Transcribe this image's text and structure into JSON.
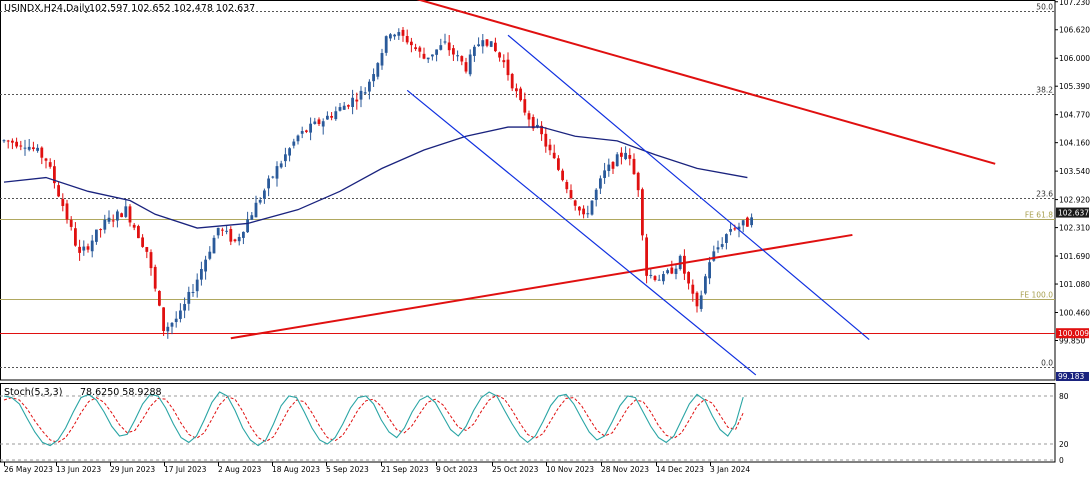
{
  "header": {
    "symbol_text": "USINDX,H24,Daily",
    "ohlc_text": "102.597 102.652 102.478 102.637"
  },
  "indicator": {
    "label_name": "Stoch(5,3,3)",
    "label_values": "78.6250 58.9288",
    "levels": [
      "80",
      "20",
      "0"
    ]
  },
  "price_axis": {
    "ticks": [
      "107.230",
      "106.620",
      "106.000",
      "105.390",
      "104.770",
      "104.160",
      "103.540",
      "102.920",
      "102.310",
      "101.690",
      "101.080",
      "100.460",
      "99.850"
    ]
  },
  "time_axis": {
    "labels": [
      "26 May 2023",
      "13 Jun 2023",
      "29 Jun 2023",
      "17 Jul 2023",
      "2 Aug 2023",
      "18 Aug 2023",
      "5 Sep 2023",
      "21 Sep 2023",
      "9 Oct 2023",
      "25 Oct 2023",
      "10 Nov 2023",
      "28 Nov 2023",
      "14 Dec 2023",
      "3 Jan 2024"
    ]
  },
  "markers": {
    "current_price": "102.637",
    "red_line_price": "100.009",
    "bottom_price": "99.183",
    "fib_labels": [
      {
        "text": "50.0",
        "price": 107.03,
        "color": "#333333"
      },
      {
        "text": "38.2",
        "price": 105.22,
        "color": "#333333"
      },
      {
        "text": "23.6",
        "price": 102.95,
        "color": "#333333"
      },
      {
        "text": "FE 61.8",
        "price": 102.5,
        "color": "#a8a050"
      },
      {
        "text": "FE 100.0",
        "price": 100.75,
        "color": "#a8a050"
      },
      {
        "text": "0.0",
        "price": 99.27,
        "color": "#333333"
      }
    ]
  },
  "colors": {
    "bull": "#2a5a9a",
    "bear": "#e01010",
    "ma": "#1a237e",
    "channel": "#1030e0",
    "trendline": "#e01010",
    "stoch_main": "#2aa5a5",
    "stoch_signal": "#e01010"
  },
  "chart_data": {
    "type": "candlestick",
    "timeframe": "Daily",
    "ylim": [
      99.55,
      107.35
    ],
    "dates": [
      "26 May 2023",
      "13 Jun 2023",
      "29 Jun 2023",
      "17 Jul 2023",
      "2 Aug 2023",
      "18 Aug 2023",
      "5 Sep 2023",
      "21 Sep 2023",
      "9 Oct 2023",
      "25 Oct 2023",
      "10 Nov 2023",
      "28 Nov 2023",
      "14 Dec 2023",
      "3 Jan 2024"
    ],
    "close_path": [
      [
        0,
        104.2
      ],
      [
        5,
        104.15
      ],
      [
        10,
        103.8
      ],
      [
        14,
        102.8
      ],
      [
        18,
        101.7
      ],
      [
        24,
        102.4
      ],
      [
        29,
        102.7
      ],
      [
        34,
        101.8
      ],
      [
        38,
        100.1
      ],
      [
        42,
        100.4
      ],
      [
        46,
        101.2
      ],
      [
        51,
        102.3
      ],
      [
        55,
        102.0
      ],
      [
        60,
        102.8
      ],
      [
        65,
        103.6
      ],
      [
        70,
        104.3
      ],
      [
        75,
        104.6
      ],
      [
        80,
        104.9
      ],
      [
        86,
        105.3
      ],
      [
        92,
        106.6
      ],
      [
        96,
        106.4
      ],
      [
        100,
        106.0
      ],
      [
        105,
        106.3
      ],
      [
        110,
        105.8
      ],
      [
        114,
        106.5
      ],
      [
        119,
        105.9
      ],
      [
        123,
        105.0
      ],
      [
        128,
        104.3
      ],
      [
        133,
        103.4
      ],
      [
        138,
        102.5
      ],
      [
        143,
        103.5
      ],
      [
        148,
        104.0
      ],
      [
        151,
        103.2
      ],
      [
        153,
        101.3
      ],
      [
        157,
        101.2
      ],
      [
        161,
        101.6
      ],
      [
        165,
        100.5
      ],
      [
        168,
        101.6
      ],
      [
        173,
        102.3
      ],
      [
        177,
        102.4
      ],
      [
        178,
        102.637
      ]
    ],
    "moving_average": [
      [
        0,
        103.3
      ],
      [
        10,
        103.4
      ],
      [
        20,
        103.1
      ],
      [
        30,
        102.9
      ],
      [
        36,
        102.6
      ],
      [
        46,
        102.3
      ],
      [
        58,
        102.4
      ],
      [
        70,
        102.7
      ],
      [
        80,
        103.1
      ],
      [
        90,
        103.6
      ],
      [
        100,
        104.0
      ],
      [
        110,
        104.3
      ],
      [
        120,
        104.5
      ],
      [
        128,
        104.5
      ],
      [
        136,
        104.3
      ],
      [
        146,
        104.2
      ],
      [
        155,
        103.9
      ],
      [
        165,
        103.6
      ],
      [
        177,
        103.4
      ]
    ],
    "red_upper_trendline": [
      [
        94,
        107.4
      ],
      [
        236,
        103.7
      ]
    ],
    "red_lower_trendline": [
      [
        54,
        99.9
      ],
      [
        202,
        102.15
      ]
    ],
    "blue_channel_upper": [
      [
        120,
        106.5
      ],
      [
        206,
        99.87
      ]
    ],
    "blue_channel_lower": [
      [
        96,
        105.3
      ],
      [
        179,
        99.1
      ]
    ],
    "stochastic_main": [
      80,
      78,
      70,
      52,
      35,
      22,
      18,
      25,
      40,
      60,
      78,
      82,
      75,
      60,
      42,
      30,
      32,
      50,
      70,
      82,
      80,
      65,
      45,
      28,
      22,
      30,
      50,
      72,
      85,
      80,
      62,
      40,
      25,
      18,
      25,
      45,
      68,
      80,
      78,
      60,
      40,
      25,
      20,
      28,
      45,
      65,
      78,
      80,
      70,
      50,
      35,
      28,
      40,
      60,
      75,
      80,
      72,
      55,
      38,
      30,
      42,
      62,
      78,
      85,
      80,
      62,
      45,
      30,
      22,
      30,
      48,
      68,
      80,
      82,
      70,
      52,
      35,
      25,
      30,
      48,
      68,
      80,
      78,
      60,
      42,
      28,
      22,
      30,
      50,
      70,
      82,
      75,
      55,
      38,
      30,
      45,
      78.625
    ],
    "stochastic_signal": [
      75,
      78,
      75,
      64,
      49,
      36,
      25,
      22,
      28,
      42,
      59,
      73,
      78,
      72,
      59,
      44,
      34,
      37,
      51,
      67,
      77,
      76,
      63,
      46,
      32,
      27,
      34,
      51,
      69,
      79,
      76,
      61,
      42,
      28,
      23,
      29,
      46,
      64,
      75,
      73,
      59,
      42,
      28,
      24,
      31,
      46,
      63,
      74,
      76,
      67,
      52,
      38,
      34,
      43,
      58,
      72,
      76,
      69,
      55,
      41,
      37,
      45,
      61,
      75,
      81,
      76,
      62,
      46,
      32,
      27,
      33,
      49,
      65,
      77,
      78,
      68,
      52,
      37,
      30,
      34,
      49,
      65,
      75,
      73,
      60,
      43,
      31,
      27,
      34,
      50,
      67,
      76,
      71,
      56,
      41,
      38,
      58.9288
    ],
    "stoch_levels": [
      80,
      20,
      0
    ]
  }
}
